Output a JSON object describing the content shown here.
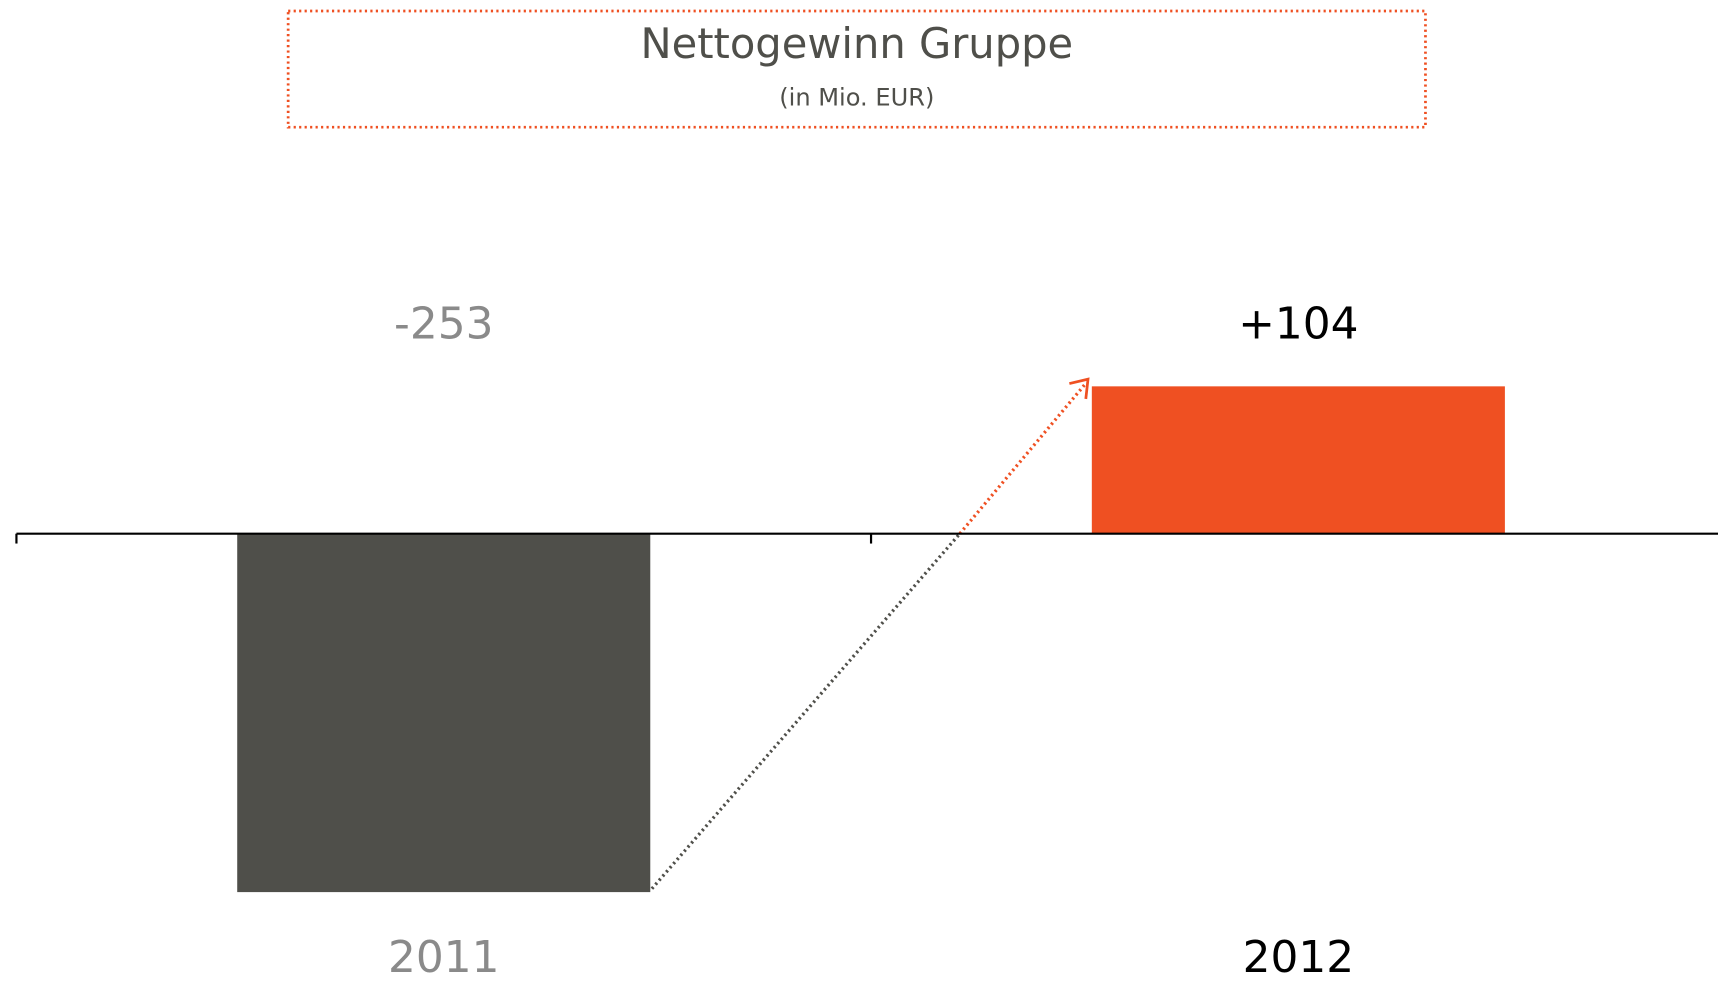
{
  "chart_data": {
    "type": "bar",
    "title": "Nettogewinn Gruppe",
    "subtitle": "(in Mio. EUR)",
    "categories": [
      "2011",
      "2012"
    ],
    "values": [
      -253,
      104
    ],
    "value_labels": [
      "-253",
      "+104"
    ],
    "colors": [
      "#4f4f4a",
      "#ef5022"
    ],
    "label_colors": [
      "#8a8a8a",
      "#000000"
    ]
  }
}
